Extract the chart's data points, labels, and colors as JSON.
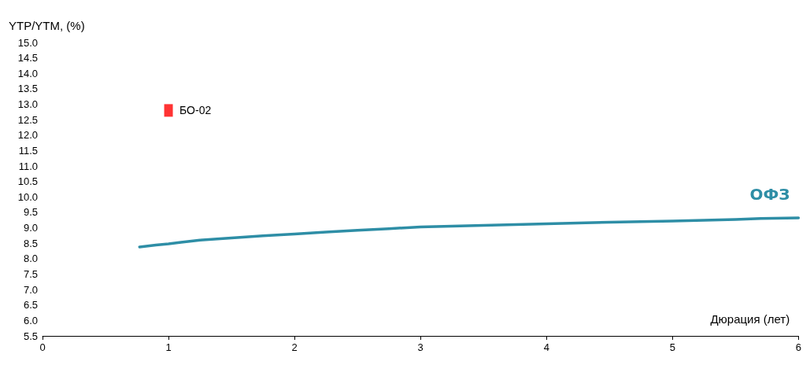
{
  "chart_data": {
    "type": "line",
    "xlabel": "Дюрация (лет)",
    "ylabel": "YTP/YTM, (%)",
    "xlim": [
      0,
      6
    ],
    "xticks": [
      0,
      1,
      2,
      3,
      4,
      5,
      6
    ],
    "ylim": [
      5.5,
      15
    ],
    "yticks": [
      {
        "value": 5.5,
        "label": "5.5"
      },
      {
        "value": 6,
        "label": "6.0"
      },
      {
        "value": 6.5,
        "label": "6.5"
      },
      {
        "value": 7,
        "label": "7.0"
      },
      {
        "value": 7.5,
        "label": "7.5"
      },
      {
        "value": 8,
        "label": "8.0"
      },
      {
        "value": 8.5,
        "label": "8.5"
      },
      {
        "value": 9,
        "label": "9.0"
      },
      {
        "value": 9.5,
        "label": "9.5"
      },
      {
        "value": 10,
        "label": "10.0"
      },
      {
        "value": 10.5,
        "label": "10.5"
      },
      {
        "value": 11,
        "label": "11.0"
      },
      {
        "value": 11.5,
        "label": "11.5"
      },
      {
        "value": 12,
        "label": "12.0"
      },
      {
        "value": 12.5,
        "label": "12.5"
      },
      {
        "value": 13,
        "label": "13.0"
      },
      {
        "value": 13.5,
        "label": "13.5"
      },
      {
        "value": 14,
        "label": "14.0"
      },
      {
        "value": 14.5,
        "label": "14.5"
      },
      {
        "value": 15,
        "label": "15.0"
      }
    ],
    "grid": false,
    "legend": false,
    "series": [
      {
        "name": "ОФЗ",
        "color": "#2e8ea6",
        "marker": "none",
        "line_style": "solid",
        "x": [
          0.77,
          0.9,
          1.0,
          1.1,
          1.25,
          1.5,
          1.75,
          2.0,
          2.25,
          2.5,
          2.75,
          3.0,
          3.5,
          4.0,
          4.5,
          5.0,
          5.5,
          5.7,
          6.0
        ],
        "values": [
          8.38,
          8.44,
          8.48,
          8.53,
          8.6,
          8.67,
          8.74,
          8.8,
          8.86,
          8.92,
          8.97,
          9.03,
          9.08,
          9.13,
          9.18,
          9.22,
          9.27,
          9.3,
          9.32
        ]
      },
      {
        "type": "scatter",
        "color": "#ff0000",
        "marker": "square",
        "x": [
          1.0
        ],
        "values": [
          12.8
        ]
      }
    ],
    "annotations": [
      {
        "text": "БО-02",
        "x": 1.0,
        "y": 12.8
      }
    ]
  }
}
